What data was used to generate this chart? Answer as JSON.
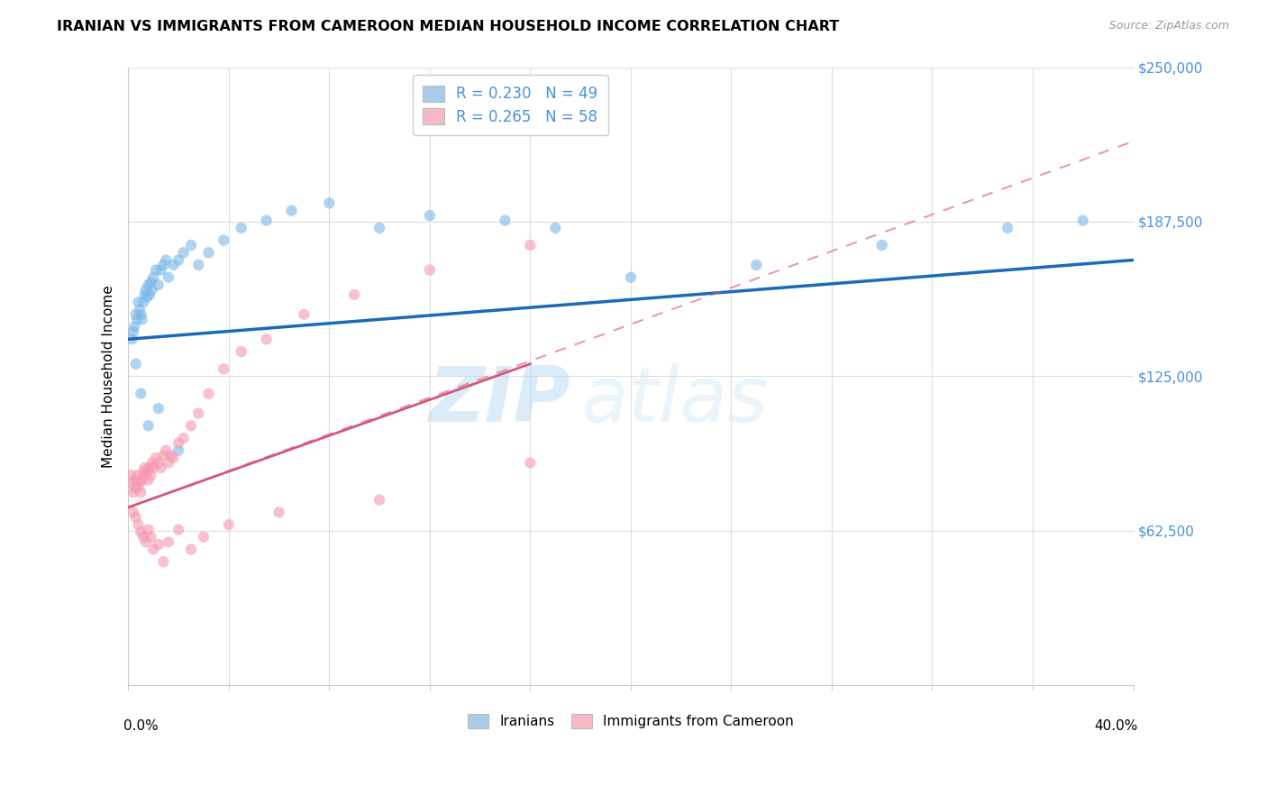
{
  "title": "IRANIAN VS IMMIGRANTS FROM CAMEROON MEDIAN HOUSEHOLD INCOME CORRELATION CHART",
  "source": "Source: ZipAtlas.com",
  "ylabel": "Median Household Income",
  "y_ticks": [
    0,
    62500,
    125000,
    187500,
    250000
  ],
  "y_tick_labels": [
    "",
    "$62,500",
    "$125,000",
    "$187,500",
    "$250,000"
  ],
  "x_min": 0.0,
  "x_max": 40.0,
  "y_min": 0,
  "y_max": 250000,
  "blue_color": "#7ab8e8",
  "pink_color": "#f599b0",
  "blue_legend_color": "#a8cce8",
  "pink_legend_color": "#f8b8c8",
  "trend_blue": "#1a6bb5",
  "trend_pink": "#d45878",
  "iranians_R": "0.230",
  "iranians_N": "49",
  "cameroon_R": "0.265",
  "cameroon_N": "58",
  "iranians_x": [
    0.15,
    0.2,
    0.25,
    0.3,
    0.35,
    0.4,
    0.45,
    0.5,
    0.55,
    0.6,
    0.65,
    0.7,
    0.75,
    0.8,
    0.85,
    0.9,
    0.95,
    1.0,
    1.1,
    1.2,
    1.3,
    1.4,
    1.5,
    1.6,
    1.8,
    2.0,
    2.2,
    2.5,
    2.8,
    3.2,
    3.8,
    4.5,
    5.5,
    6.5,
    8.0,
    10.0,
    12.0,
    15.0,
    17.0,
    20.0,
    25.0,
    30.0,
    35.0,
    38.0,
    0.3,
    0.5,
    0.8,
    1.2,
    2.0
  ],
  "iranians_y": [
    140000,
    143000,
    145000,
    150000,
    148000,
    155000,
    152000,
    150000,
    148000,
    155000,
    158000,
    160000,
    157000,
    162000,
    158000,
    163000,
    160000,
    165000,
    168000,
    162000,
    168000,
    170000,
    172000,
    165000,
    170000,
    172000,
    175000,
    178000,
    170000,
    175000,
    180000,
    185000,
    188000,
    192000,
    195000,
    185000,
    190000,
    188000,
    185000,
    165000,
    170000,
    178000,
    185000,
    188000,
    130000,
    118000,
    105000,
    112000,
    95000
  ],
  "cameroon_x": [
    0.1,
    0.15,
    0.2,
    0.25,
    0.3,
    0.35,
    0.4,
    0.45,
    0.5,
    0.55,
    0.6,
    0.65,
    0.7,
    0.75,
    0.8,
    0.85,
    0.9,
    0.95,
    1.0,
    1.1,
    1.2,
    1.3,
    1.4,
    1.5,
    1.6,
    1.7,
    1.8,
    2.0,
    2.2,
    2.5,
    2.8,
    3.2,
    3.8,
    4.5,
    5.5,
    7.0,
    9.0,
    12.0,
    16.0,
    0.2,
    0.3,
    0.4,
    0.5,
    0.6,
    0.7,
    0.8,
    0.9,
    1.0,
    1.2,
    1.4,
    1.6,
    2.0,
    2.5,
    3.0,
    4.0,
    6.0,
    10.0,
    16.0
  ],
  "cameroon_y": [
    85000,
    82000,
    78000,
    80000,
    83000,
    85000,
    80000,
    82000,
    78000,
    83000,
    86000,
    88000,
    85000,
    87000,
    83000,
    88000,
    85000,
    90000,
    88000,
    92000,
    90000,
    88000,
    93000,
    95000,
    90000,
    93000,
    92000,
    98000,
    100000,
    105000,
    110000,
    118000,
    128000,
    135000,
    140000,
    150000,
    158000,
    168000,
    178000,
    70000,
    68000,
    65000,
    62000,
    60000,
    58000,
    63000,
    60000,
    55000,
    57000,
    50000,
    58000,
    63000,
    55000,
    60000,
    65000,
    70000,
    75000,
    90000
  ],
  "blue_trend_x0": 0.0,
  "blue_trend_y0": 140000,
  "blue_trend_x1": 40.0,
  "blue_trend_y1": 172000,
  "pink_trend_x0": 0.0,
  "pink_trend_y0": 72000,
  "pink_trend_x1": 16.0,
  "pink_trend_y1": 130000,
  "pink_dash_x0": 0.0,
  "pink_dash_y0": 72000,
  "pink_dash_x1": 40.0,
  "pink_dash_y1": 220000
}
